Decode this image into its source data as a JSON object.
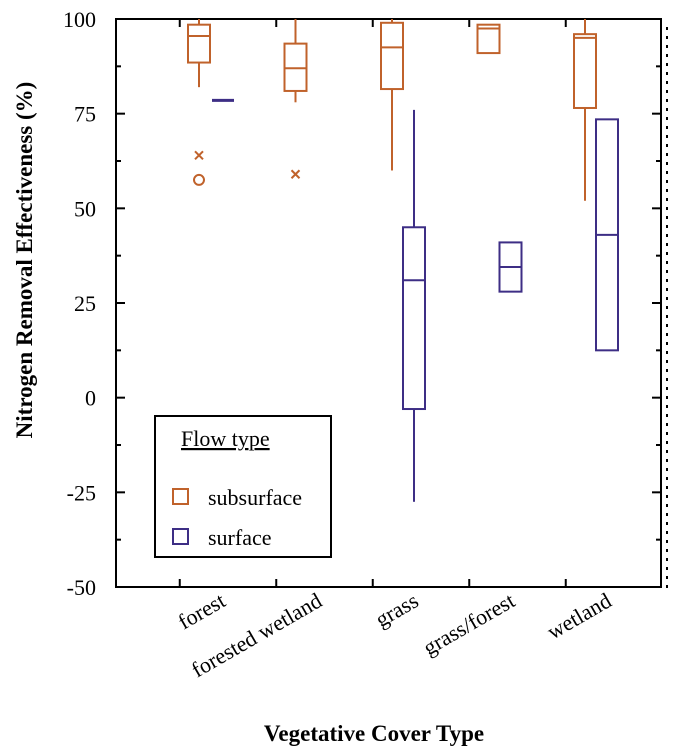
{
  "chart_data": {
    "type": "box",
    "xlabel": "Vegetative Cover Type",
    "ylabel": "Nitrogen Removal Effectiveness (%)",
    "ylim": [
      -50,
      100
    ],
    "yticks": [
      -50,
      -25,
      0,
      25,
      50,
      75,
      100
    ],
    "categories": [
      "forest",
      "forested wetland",
      "grass",
      "grass/forest",
      "wetland"
    ],
    "grid": false,
    "legend": {
      "title": "Flow type",
      "position": "bottom-left",
      "entries": [
        {
          "name": "subsurface",
          "color": "#c0622b"
        },
        {
          "name": "surface",
          "color": "#3d2e85"
        }
      ]
    },
    "series": [
      {
        "name": "subsurface",
        "color": "#c0622b",
        "boxes": [
          {
            "category": "forest",
            "whisker_low": 82,
            "q1": 88.5,
            "median": 95.5,
            "q3": 98.5,
            "whisker_high": 100,
            "outliers": [
              {
                "value": 64,
                "marker": "x"
              },
              {
                "value": 57.5,
                "marker": "o"
              }
            ]
          },
          {
            "category": "forested wetland",
            "whisker_low": 78,
            "q1": 81,
            "median": 87,
            "q3": 93.5,
            "whisker_high": 100,
            "outliers": [
              {
                "value": 59,
                "marker": "x"
              }
            ]
          },
          {
            "category": "grass",
            "whisker_low": 60,
            "q1": 81.5,
            "median": 92.5,
            "q3": 99,
            "whisker_high": 100,
            "outliers": []
          },
          {
            "category": "grass/forest",
            "whisker_low": 91,
            "q1": 91,
            "median": 97.5,
            "q3": 98.5,
            "whisker_high": 98.5,
            "outliers": []
          },
          {
            "category": "wetland",
            "whisker_low": 52,
            "q1": 76.5,
            "median": 95,
            "q3": 96,
            "whisker_high": 100,
            "outliers": []
          }
        ]
      },
      {
        "name": "surface",
        "color": "#3d2e85",
        "boxes": [
          {
            "category": "forest",
            "whisker_low": 78.5,
            "q1": 78.5,
            "median": 78.5,
            "q3": 78.5,
            "whisker_high": 78.5,
            "outliers": []
          },
          {
            "category": "grass",
            "whisker_low": -27.5,
            "q1": -3,
            "median": 31,
            "q3": 45,
            "whisker_high": 76,
            "outliers": []
          },
          {
            "category": "grass/forest",
            "whisker_low": 28,
            "q1": 28,
            "median": 34.5,
            "q3": 41,
            "whisker_high": 41,
            "outliers": []
          },
          {
            "category": "wetland",
            "whisker_low": 12.5,
            "q1": 12.5,
            "median": 43,
            "q3": 73.5,
            "whisker_high": 73.5,
            "outliers": []
          }
        ]
      }
    ]
  }
}
